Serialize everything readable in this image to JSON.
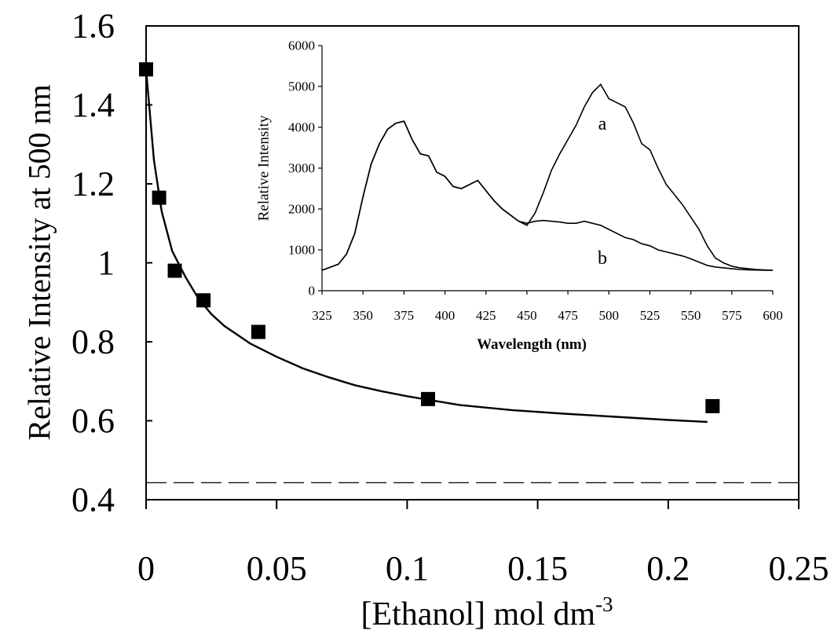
{
  "chart_data": [
    {
      "type": "scatter",
      "xlabel": "[Ethanol] mol dm",
      "xlabel_superscript": "-3",
      "ylabel": "Relative Intensity at 500 nm",
      "xlim": [
        0,
        0.25
      ],
      "ylim": [
        0.4,
        1.6
      ],
      "x_ticks": [
        "0",
        "0.05",
        "0.1",
        "0.15",
        "0.2",
        "0.25"
      ],
      "y_ticks": [
        "0.4",
        "0.6",
        "0.8",
        "1",
        "1.2",
        "1.4",
        "1.6"
      ],
      "x_tick_values": [
        0,
        0.05,
        0.1,
        0.15,
        0.2,
        0.25
      ],
      "y_tick_values": [
        0.4,
        0.6,
        0.8,
        1.0,
        1.2,
        1.4,
        1.6
      ],
      "series": [
        {
          "kind": "points",
          "marker": "filled-square",
          "x": [
            0,
            0.005,
            0.011,
            0.022,
            0.043,
            0.108,
            0.217
          ],
          "y": [
            1.49,
            1.165,
            0.98,
            0.905,
            0.825,
            0.655,
            0.637
          ]
        },
        {
          "kind": "fit-line",
          "x": [
            0,
            0.003,
            0.006,
            0.01,
            0.015,
            0.02,
            0.025,
            0.03,
            0.04,
            0.05,
            0.06,
            0.07,
            0.08,
            0.09,
            0.1,
            0.12,
            0.14,
            0.16,
            0.18,
            0.2,
            0.215
          ],
          "y": [
            1.49,
            1.26,
            1.13,
            1.03,
            0.965,
            0.91,
            0.87,
            0.84,
            0.795,
            0.762,
            0.733,
            0.71,
            0.69,
            0.675,
            0.662,
            0.64,
            0.627,
            0.618,
            0.61,
            0.602,
            0.597
          ]
        },
        {
          "kind": "baseline",
          "style": "dashed",
          "y": 0.443
        }
      ]
    },
    {
      "type": "line",
      "xlabel": "Wavelength (nm)",
      "ylabel": "Relative Intensity",
      "xlim": [
        325,
        600
      ],
      "ylim": [
        0,
        6000
      ],
      "x_ticks": [
        "325",
        "350",
        "375",
        "400",
        "425",
        "450",
        "475",
        "500",
        "525",
        "550",
        "575",
        "600"
      ],
      "y_ticks": [
        "0",
        "1000",
        "2000",
        "3000",
        "4000",
        "5000",
        "6000"
      ],
      "x_tick_values": [
        325,
        350,
        375,
        400,
        425,
        450,
        475,
        500,
        525,
        550,
        575,
        600
      ],
      "y_tick_values": [
        0,
        1000,
        2000,
        3000,
        4000,
        5000,
        6000
      ],
      "series": [
        {
          "name": "a",
          "x": [
            325,
            335,
            340,
            345,
            350,
            355,
            360,
            365,
            370,
            375,
            380,
            385,
            390,
            395,
            400,
            405,
            410,
            415,
            420,
            425,
            430,
            435,
            440,
            445,
            450,
            455,
            460,
            465,
            470,
            475,
            480,
            485,
            490,
            495,
            500,
            505,
            510,
            515,
            520,
            525,
            530,
            535,
            540,
            545,
            550,
            555,
            560,
            565,
            570,
            575,
            580,
            585,
            590,
            595,
            600
          ],
          "y": [
            500,
            650,
            900,
            1400,
            2300,
            3100,
            3600,
            3950,
            4100,
            4150,
            3700,
            3350,
            3300,
            2900,
            2800,
            2550,
            2500,
            2600,
            2700,
            2450,
            2200,
            2000,
            1850,
            1700,
            1600,
            1900,
            2400,
            2950,
            3350,
            3700,
            4050,
            4500,
            4850,
            5050,
            4700,
            4600,
            4500,
            4100,
            3600,
            3450,
            3000,
            2600,
            2350,
            2100,
            1800,
            1500,
            1100,
            800,
            680,
            600,
            560,
            540,
            520,
            510,
            500
          ]
        },
        {
          "name": "b",
          "x": [
            325,
            335,
            340,
            345,
            350,
            355,
            360,
            365,
            370,
            375,
            380,
            385,
            390,
            395,
            400,
            405,
            410,
            415,
            420,
            425,
            430,
            435,
            440,
            445,
            450,
            455,
            460,
            465,
            470,
            475,
            480,
            485,
            490,
            495,
            500,
            505,
            510,
            515,
            520,
            525,
            530,
            535,
            540,
            545,
            550,
            555,
            560,
            565,
            570,
            575,
            580,
            585,
            590,
            595,
            600
          ],
          "y": [
            500,
            650,
            900,
            1400,
            2300,
            3100,
            3600,
            3950,
            4100,
            4150,
            3700,
            3350,
            3300,
            2900,
            2800,
            2550,
            2500,
            2600,
            2700,
            2450,
            2200,
            2000,
            1850,
            1700,
            1650,
            1700,
            1720,
            1700,
            1680,
            1650,
            1650,
            1700,
            1650,
            1600,
            1500,
            1400,
            1300,
            1250,
            1150,
            1100,
            1000,
            950,
            900,
            850,
            780,
            700,
            620,
            580,
            560,
            540,
            520,
            510,
            505,
            500,
            500
          ]
        }
      ]
    }
  ]
}
